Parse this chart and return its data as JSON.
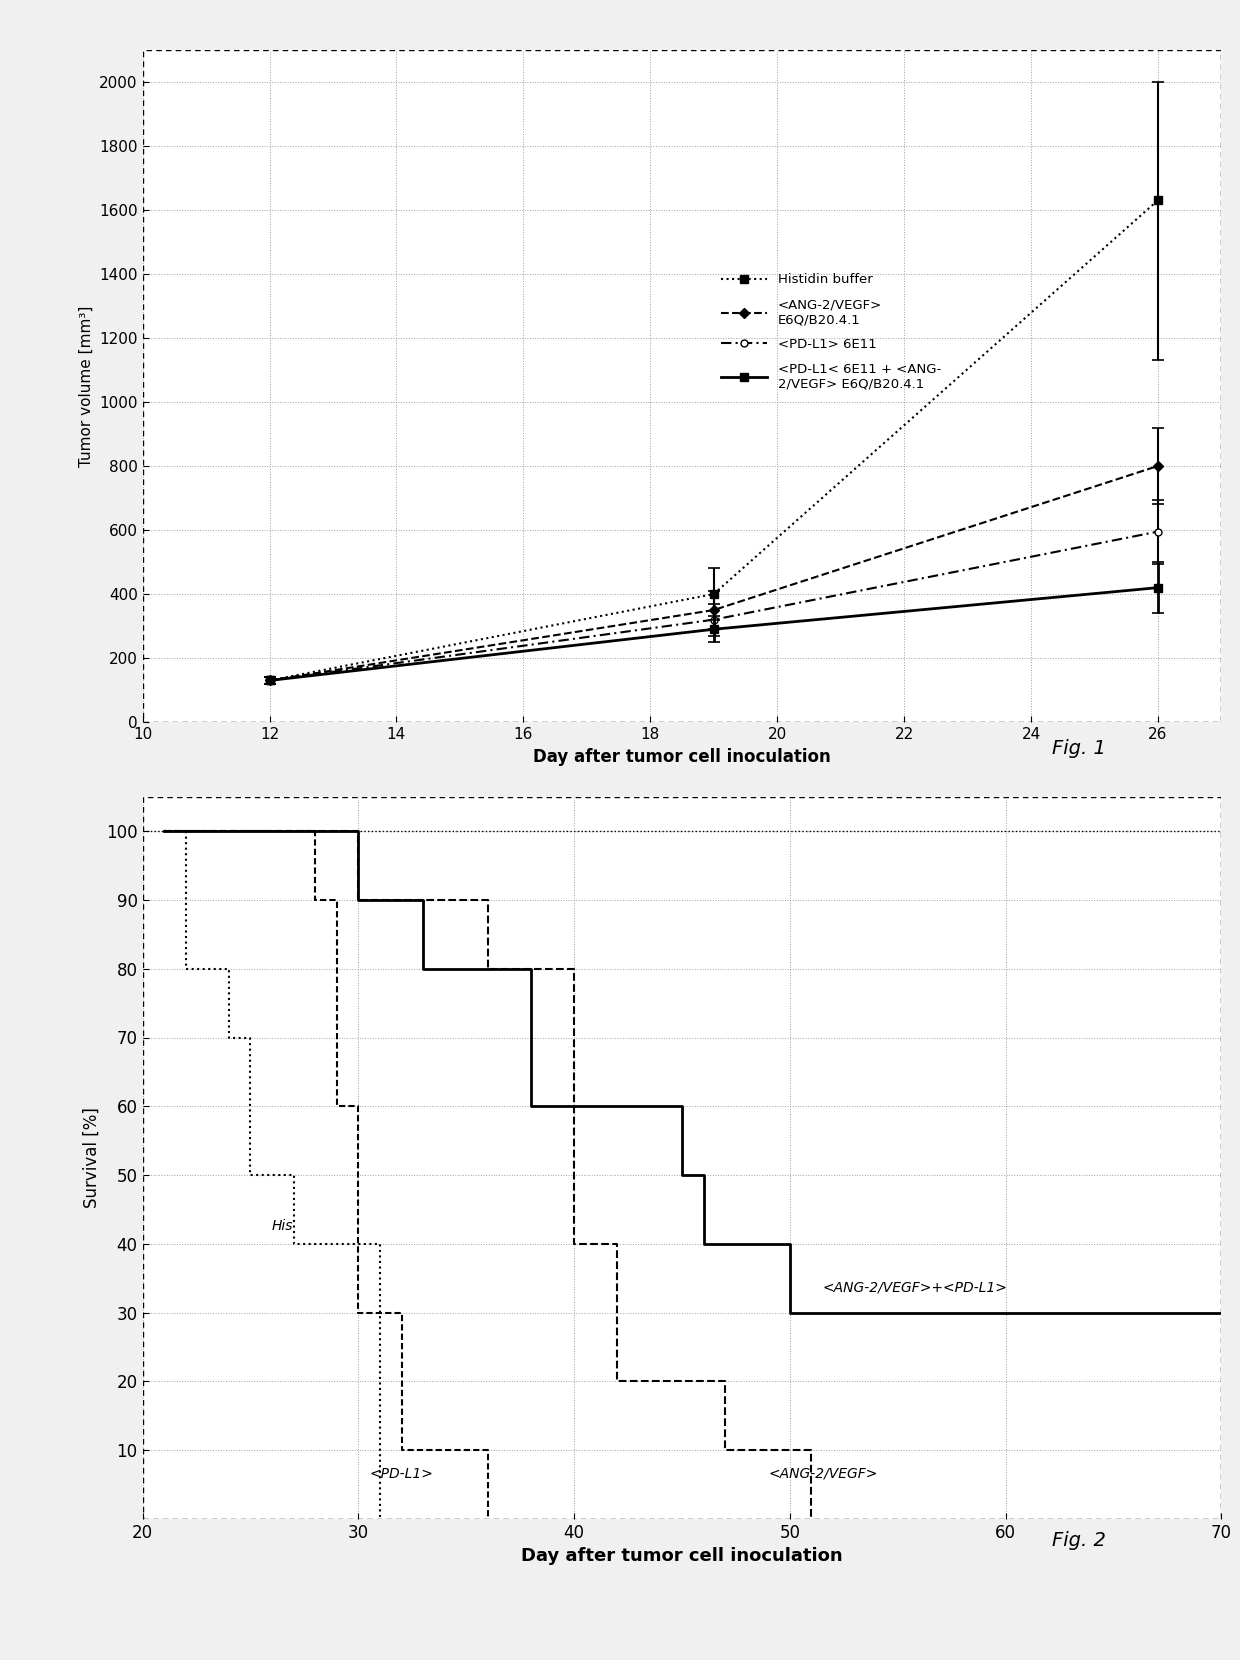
{
  "fig1": {
    "xlabel": "Day after tumor cell inoculation",
    "ylabel": "Tumor volume [mm³]",
    "xlim": [
      10,
      27
    ],
    "ylim": [
      0,
      2100
    ],
    "xticks": [
      10,
      12,
      14,
      16,
      18,
      20,
      22,
      24,
      26
    ],
    "yticks": [
      0,
      200,
      400,
      600,
      800,
      1000,
      1200,
      1400,
      1600,
      1800,
      2000
    ],
    "histidin": {
      "x": [
        12,
        19,
        26
      ],
      "y": [
        130,
        400,
        1630
      ],
      "yerr_low": [
        10,
        80,
        500
      ],
      "yerr_high": [
        10,
        80,
        370
      ],
      "marker": "s",
      "linestyle": "dotted",
      "label": "Histidin buffer",
      "linewidth": 1.5,
      "markersize": 6,
      "markerfacecolor": "black"
    },
    "ang2vegf": {
      "x": [
        12,
        19,
        26
      ],
      "y": [
        130,
        350,
        800
      ],
      "yerr_low": [
        10,
        60,
        120
      ],
      "yerr_high": [
        10,
        60,
        120
      ],
      "marker": "D",
      "linestyle": "dashed",
      "label": "<ANG-2/VEGF>\nE6Q/B20.4.1",
      "linewidth": 1.5,
      "markersize": 5,
      "markerfacecolor": "black"
    },
    "pdl1": {
      "x": [
        12,
        19,
        26
      ],
      "y": [
        130,
        320,
        595
      ],
      "yerr_low": [
        10,
        50,
        100
      ],
      "yerr_high": [
        10,
        50,
        100
      ],
      "marker": "o",
      "linestyle": "dashdot",
      "label": "<PD-L1> 6E11",
      "linewidth": 1.5,
      "markersize": 5,
      "markerfacecolor": "white"
    },
    "combo": {
      "x": [
        12,
        19,
        26
      ],
      "y": [
        130,
        290,
        420
      ],
      "yerr_low": [
        10,
        40,
        80
      ],
      "yerr_high": [
        10,
        40,
        80
      ],
      "marker": "s",
      "linestyle": "solid",
      "label": "<PD-L1< 6E11 + <ANG-\n2/VEGF> E6Q/B20.4.1",
      "linewidth": 2.0,
      "markersize": 6,
      "markerfacecolor": "black"
    }
  },
  "fig2": {
    "xlabel": "Day after tumor cell inoculation",
    "ylabel": "Survival [%]",
    "xlim": [
      20,
      70
    ],
    "ylim": [
      0,
      105
    ],
    "xticks": [
      20,
      30,
      40,
      50,
      60,
      70
    ],
    "yticks": [
      10,
      20,
      30,
      40,
      50,
      60,
      70,
      80,
      90,
      100
    ],
    "histidin": {
      "x": [
        21,
        22,
        24,
        25,
        27,
        29,
        31
      ],
      "y": [
        100,
        80,
        70,
        50,
        40,
        40,
        0
      ],
      "linestyle": "dotted",
      "linewidth": 1.5,
      "ann_x": 26.0,
      "ann_y": 42,
      "ann_text": "His"
    },
    "pdl1": {
      "x": [
        21,
        28,
        29,
        30,
        32,
        36
      ],
      "y": [
        100,
        90,
        60,
        30,
        10,
        0
      ],
      "linestyle": "densely_dashed",
      "linewidth": 1.5,
      "ann_x": 30.5,
      "ann_y": 6,
      "ann_text": "<PD-L1>"
    },
    "ang2vegf": {
      "x": [
        21,
        30,
        36,
        40,
        42,
        47,
        49,
        51
      ],
      "y": [
        100,
        90,
        80,
        40,
        20,
        10,
        10,
        0
      ],
      "linestyle": "dashed",
      "linewidth": 1.5,
      "ann_x": 49.0,
      "ann_y": 6,
      "ann_text": "<ANG-2/VEGF>"
    },
    "combo": {
      "x": [
        21,
        30,
        33,
        38,
        45,
        46,
        50,
        70
      ],
      "y": [
        100,
        90,
        80,
        60,
        50,
        40,
        30,
        30
      ],
      "linestyle": "solid",
      "linewidth": 2.0,
      "ann_x": 51.5,
      "ann_y": 33,
      "ann_text": "<ANG-2/VEGF>+<PD-L1>"
    }
  },
  "fig1_label": "Fig. 1",
  "fig2_label": "Fig. 2",
  "page_bg": "#f0f0f0",
  "chart_bg": "#ffffff"
}
